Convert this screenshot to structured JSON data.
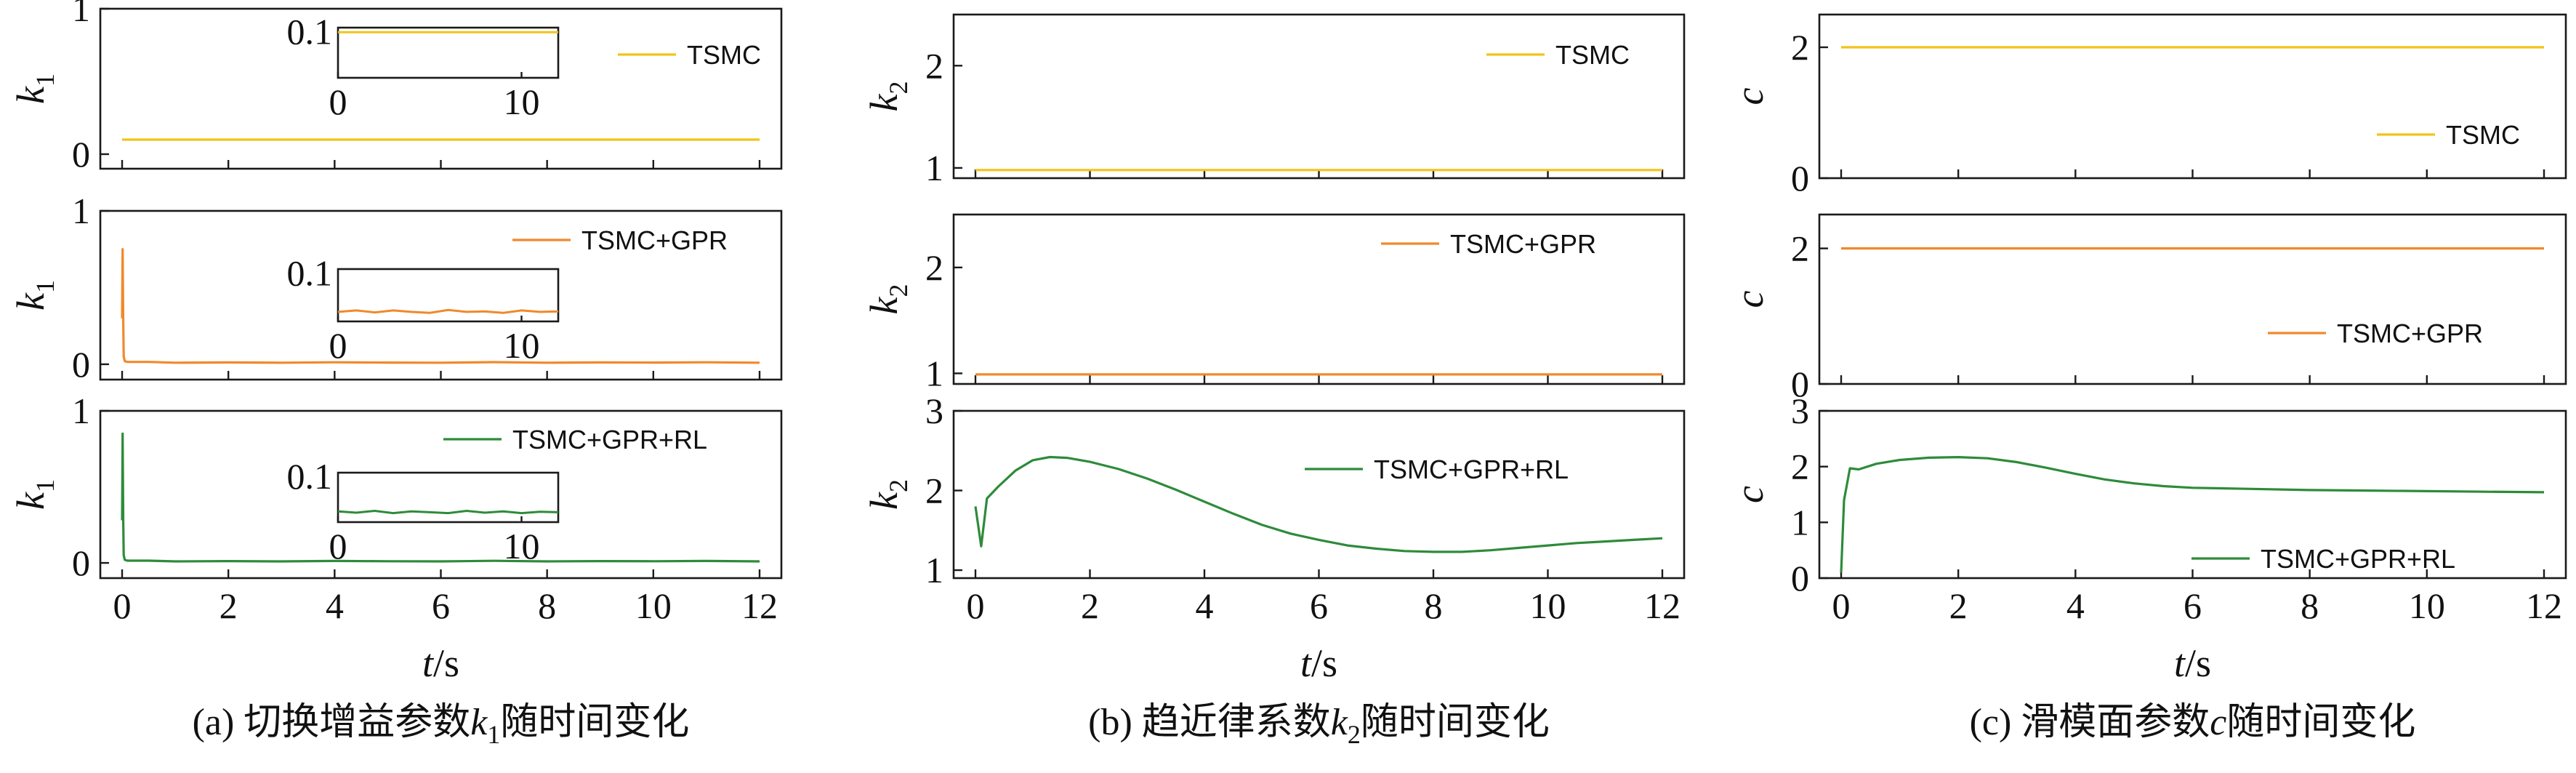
{
  "chart_data": [
    {
      "type": "line",
      "caption": "(a) 切换增益参数k1随时间变化",
      "caption_parts": {
        "pre": "(a) 切换增益参数",
        "var": "k",
        "sub": "1",
        "post": "随时间变化"
      },
      "xlabel": "t/s",
      "xlim": [
        0,
        12
      ],
      "xticks": [
        "0",
        "2",
        "4",
        "6",
        "8",
        "10",
        "12"
      ],
      "panels": [
        {
          "ylabel": "k",
          "ylabel_sub": "1",
          "ylim": [
            -0.1,
            1.0
          ],
          "yticks": [
            "0",
            "1"
          ],
          "series": [
            {
              "name": "TSMC",
              "color": "#f2c318",
              "x": [
                0,
                12
              ],
              "y": [
                0.1,
                0.1
              ]
            }
          ],
          "inset": {
            "xlim": [
              0,
              12
            ],
            "ylim": [
              0,
              0.11
            ],
            "xticks": [
              "0",
              "10"
            ],
            "yticks": [
              "0.1"
            ],
            "x": [
              0,
              12
            ],
            "y": [
              0.1,
              0.1
            ]
          }
        },
        {
          "ylabel": "k",
          "ylabel_sub": "1",
          "ylim": [
            -0.1,
            1.0
          ],
          "yticks": [
            "0",
            "1"
          ],
          "series": [
            {
              "name": "TSMC+GPR",
              "color": "#f0892b",
              "x": [
                0,
                0.01,
                0.02,
                0.03,
                0.05,
                0.1,
                0.5,
                1,
                2,
                3,
                4,
                5,
                6,
                7,
                8,
                9,
                10,
                11,
                12
              ],
              "y": [
                0.3,
                0.75,
                0.3,
                0.05,
                0.02,
                0.015,
                0.015,
                0.01,
                0.012,
                0.01,
                0.013,
                0.011,
                0.01,
                0.014,
                0.01,
                0.012,
                0.011,
                0.013,
                0.01
              ]
            }
          ],
          "inset": {
            "xlim": [
              0,
              12
            ],
            "ylim": [
              0,
              0.11
            ],
            "xticks": [
              "0",
              "10"
            ],
            "yticks": [
              "0.1"
            ],
            "x": [
              0,
              1,
              2,
              3,
              4,
              5,
              6,
              7,
              8,
              9,
              10,
              11,
              12
            ],
            "y": [
              0.02,
              0.023,
              0.019,
              0.023,
              0.02,
              0.018,
              0.024,
              0.02,
              0.021,
              0.018,
              0.023,
              0.02,
              0.021
            ]
          }
        },
        {
          "ylabel": "k",
          "ylabel_sub": "1",
          "ylim": [
            -0.1,
            1.0
          ],
          "yticks": [
            "0",
            "1"
          ],
          "series": [
            {
              "name": "TSMC+GPR+RL",
              "color": "#2e8b3a",
              "x": [
                0,
                0.01,
                0.02,
                0.03,
                0.05,
                0.1,
                0.5,
                1,
                2,
                3,
                4,
                5,
                6,
                7,
                8,
                9,
                10,
                11,
                12
              ],
              "y": [
                0.28,
                0.85,
                0.3,
                0.05,
                0.02,
                0.015,
                0.015,
                0.01,
                0.012,
                0.01,
                0.013,
                0.011,
                0.01,
                0.014,
                0.01,
                0.012,
                0.011,
                0.013,
                0.01
              ]
            }
          ],
          "inset": {
            "xlim": [
              0,
              12
            ],
            "ylim": [
              0,
              0.11
            ],
            "xticks": [
              "0",
              "10"
            ],
            "yticks": [
              "0.1"
            ],
            "x": [
              0,
              1,
              2,
              3,
              4,
              5,
              6,
              7,
              8,
              9,
              10,
              11,
              12
            ],
            "y": [
              0.024,
              0.021,
              0.025,
              0.02,
              0.024,
              0.022,
              0.02,
              0.025,
              0.021,
              0.024,
              0.02,
              0.023,
              0.022
            ]
          }
        }
      ]
    },
    {
      "type": "line",
      "caption": "(b) 趋近律系数k2随时间变化",
      "caption_parts": {
        "pre": "(b) 趋近律系数",
        "var": "k",
        "sub": "2",
        "post": "随时间变化"
      },
      "xlabel": "t/s",
      "xlim": [
        0,
        12
      ],
      "xticks": [
        "0",
        "2",
        "4",
        "6",
        "8",
        "10",
        "12"
      ],
      "panels": [
        {
          "ylabel": "k",
          "ylabel_sub": "2",
          "ylim": [
            0.9,
            2.5
          ],
          "yticks": [
            "1",
            "2"
          ],
          "ytick_values": [
            1,
            2
          ],
          "series": [
            {
              "name": "TSMC",
              "color": "#f2c318",
              "x": [
                0,
                12
              ],
              "y": [
                0.98,
                0.98
              ]
            }
          ]
        },
        {
          "ylabel": "k",
          "ylabel_sub": "2",
          "ylim": [
            0.9,
            2.5
          ],
          "yticks": [
            "1",
            "2"
          ],
          "ytick_values": [
            1,
            2
          ],
          "series": [
            {
              "name": "TSMC+GPR",
              "color": "#f0892b",
              "x": [
                0,
                12
              ],
              "y": [
                0.99,
                0.99
              ]
            }
          ]
        },
        {
          "ylabel": "k",
          "ylabel_sub": "2",
          "ylim": [
            0.9,
            3.0
          ],
          "yticks": [
            "1",
            "2",
            "3"
          ],
          "ytick_values": [
            1,
            2,
            3
          ],
          "series": [
            {
              "name": "TSMC+GPR+RL",
              "color": "#2e8b3a",
              "x": [
                0,
                0.1,
                0.2,
                0.4,
                0.7,
                1.0,
                1.3,
                1.6,
                2.0,
                2.5,
                3.0,
                3.5,
                4.0,
                4.5,
                5.0,
                5.5,
                6.0,
                6.5,
                7.0,
                7.5,
                8.0,
                8.5,
                9.0,
                9.5,
                10.0,
                10.5,
                11.0,
                11.5,
                12.0
              ],
              "y": [
                1.8,
                1.3,
                1.9,
                2.05,
                2.25,
                2.38,
                2.42,
                2.41,
                2.36,
                2.27,
                2.15,
                2.01,
                1.86,
                1.71,
                1.57,
                1.46,
                1.38,
                1.31,
                1.27,
                1.24,
                1.23,
                1.23,
                1.25,
                1.28,
                1.31,
                1.34,
                1.36,
                1.38,
                1.4
              ]
            }
          ]
        }
      ]
    },
    {
      "type": "line",
      "caption": "(c) 滑模面参数c随时间变化",
      "caption_parts": {
        "pre": "(c) 滑模面参数",
        "var": "c",
        "sub": "",
        "post": "随时间变化"
      },
      "xlabel": "t/s",
      "xlim": [
        0,
        12
      ],
      "xticks": [
        "0",
        "2",
        "4",
        "6",
        "8",
        "10",
        "12"
      ],
      "panels": [
        {
          "ylabel": "c",
          "ylabel_sub": "",
          "ylim": [
            0,
            2.5
          ],
          "yticks": [
            "0",
            "2"
          ],
          "ytick_values": [
            0,
            2
          ],
          "series": [
            {
              "name": "TSMC",
              "color": "#f2c318",
              "x": [
                0,
                12
              ],
              "y": [
                2.0,
                2.0
              ]
            }
          ]
        },
        {
          "ylabel": "c",
          "ylabel_sub": "",
          "ylim": [
            0,
            2.5
          ],
          "yticks": [
            "0",
            "2"
          ],
          "ytick_values": [
            0,
            2
          ],
          "series": [
            {
              "name": "TSMC+GPR",
              "color": "#f0892b",
              "x": [
                0,
                12
              ],
              "y": [
                2.0,
                2.0
              ]
            }
          ]
        },
        {
          "ylabel": "c",
          "ylabel_sub": "",
          "ylim": [
            0,
            3.0
          ],
          "yticks": [
            "0",
            "1",
            "2",
            "3"
          ],
          "ytick_values": [
            0,
            1,
            2,
            3
          ],
          "series": [
            {
              "name": "TSMC+GPR+RL",
              "color": "#2e8b3a",
              "x": [
                0,
                0.05,
                0.15,
                0.3,
                0.6,
                1.0,
                1.5,
                2.0,
                2.5,
                3.0,
                3.5,
                4.0,
                4.5,
                5.0,
                5.5,
                6.0,
                7.0,
                8.0,
                9.0,
                10.0,
                11.0,
                12.0
              ],
              "y": [
                0.1,
                1.4,
                1.97,
                1.95,
                2.05,
                2.12,
                2.16,
                2.17,
                2.15,
                2.08,
                1.98,
                1.87,
                1.77,
                1.7,
                1.65,
                1.62,
                1.6,
                1.58,
                1.57,
                1.56,
                1.55,
                1.54
              ]
            }
          ]
        }
      ]
    }
  ]
}
